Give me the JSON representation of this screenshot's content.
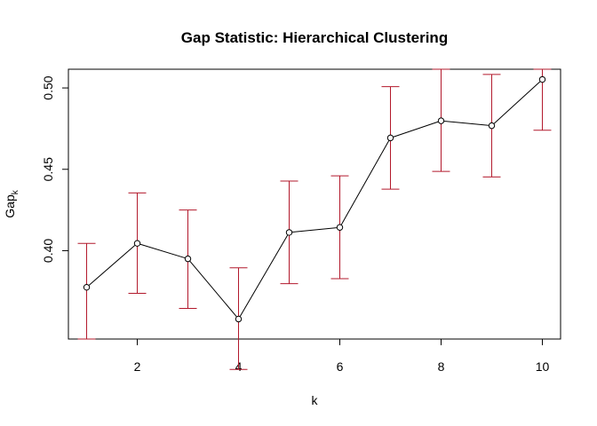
{
  "chart_data": {
    "type": "line",
    "title": "Gap Statistic: Hierarchical Clustering",
    "xlabel": "k",
    "ylabel_main": "Gap",
    "ylabel_sub": "k",
    "x": [
      1,
      2,
      3,
      4,
      5,
      6,
      7,
      8,
      9,
      10
    ],
    "series": [
      {
        "values": [
          0.3775,
          0.4045,
          0.395,
          0.358,
          0.4112,
          0.4143,
          0.4693,
          0.4798,
          0.4768,
          0.5052
        ],
        "error_low": [
          0.3457,
          0.3738,
          0.3645,
          0.327,
          0.3797,
          0.3828,
          0.4378,
          0.4487,
          0.4453,
          0.474
        ],
        "error_high": [
          0.4045,
          0.4355,
          0.425,
          0.3895,
          0.4428,
          0.446,
          0.5008,
          0.5115,
          0.5083,
          0.5115
        ]
      }
    ],
    "xlim": [
      0.64,
      10.36
    ],
    "ylim": [
      0.3457,
      0.5115
    ],
    "xticks": [
      2,
      4,
      6,
      8,
      10
    ],
    "yticks": [
      0.4,
      0.45,
      0.5
    ],
    "ytick_labels": [
      "0.40",
      "0.45",
      "0.50"
    ],
    "grid": false,
    "line_color": "#000000",
    "error_bar_color": "#b2182b",
    "point_color": "#000000"
  }
}
